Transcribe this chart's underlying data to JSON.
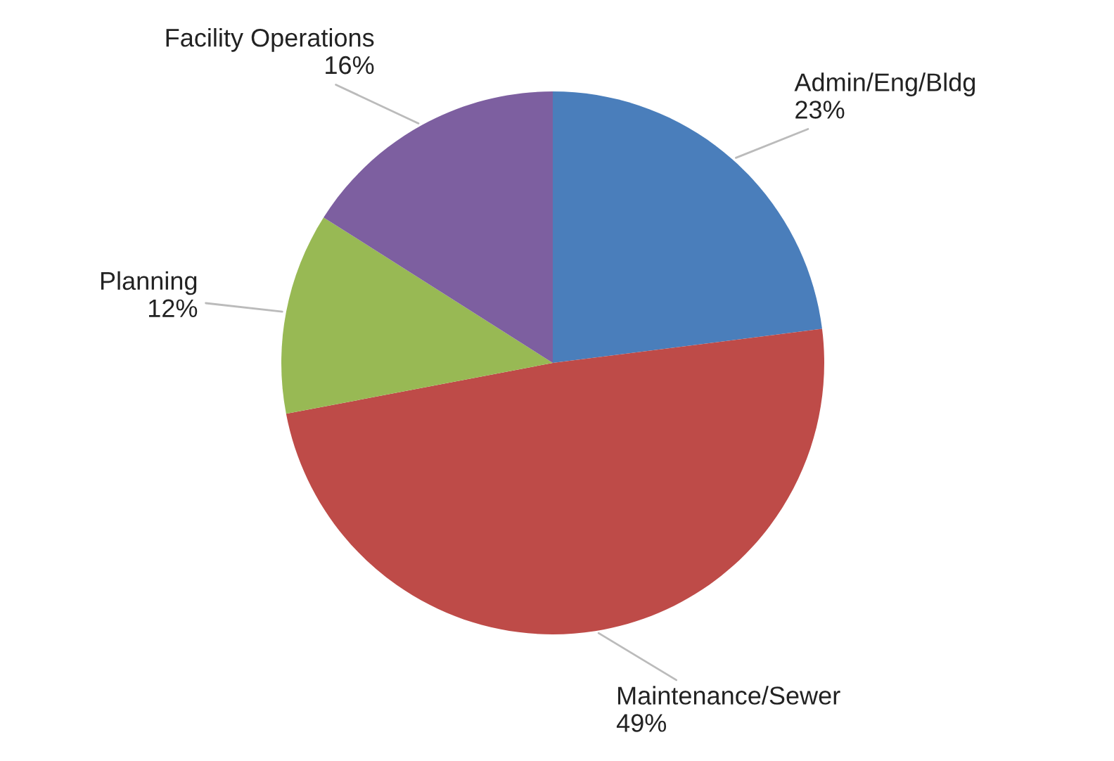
{
  "chart_data": {
    "type": "pie",
    "categories": [
      "Admin/Eng/Bldg",
      "Maintenance/Sewer",
      "Planning",
      "Facility Operations"
    ],
    "values": [
      23,
      49,
      12,
      16
    ],
    "colors": [
      "#4a7ebb",
      "#be4b48",
      "#98b954",
      "#7d5fa0"
    ],
    "value_labels": [
      "23%",
      "49%",
      "12%",
      "16%"
    ],
    "legend": false
  }
}
